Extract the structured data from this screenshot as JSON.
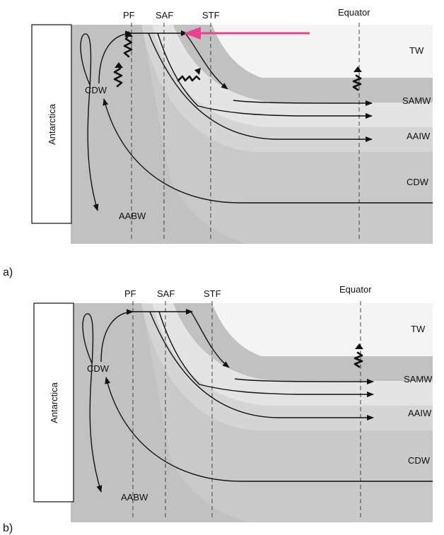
{
  "colors": {
    "tw": "#f4f4f4",
    "samw": "#e4e4e4",
    "aaiw": "#d5d5d5",
    "cdw": "#c9c9c9",
    "deep": "#c1c1c1",
    "wind_arrow": "#ee3f8f"
  },
  "panels": [
    {
      "panel_label": "a)",
      "continent": "Antarctica",
      "fronts": [
        "PF",
        "SAF",
        "STF"
      ],
      "equator": "Equator",
      "water_masses": {
        "tw": "TW",
        "samw": "SAMW",
        "aaiw": "AAIW",
        "cdw": "CDW"
      },
      "upwelling_label": "CDW",
      "bottom_water": "AABW",
      "has_wind_arrow": true
    },
    {
      "panel_label": "b)",
      "continent": "Antarctica",
      "fronts": [
        "PF",
        "SAF",
        "STF"
      ],
      "equator": "Equator",
      "water_masses": {
        "tw": "TW",
        "samw": "SAMW",
        "aaiw": "AAIW",
        "cdw": "CDW"
      },
      "upwelling_label": "CDW",
      "bottom_water": "AABW",
      "has_wind_arrow": false
    }
  ]
}
